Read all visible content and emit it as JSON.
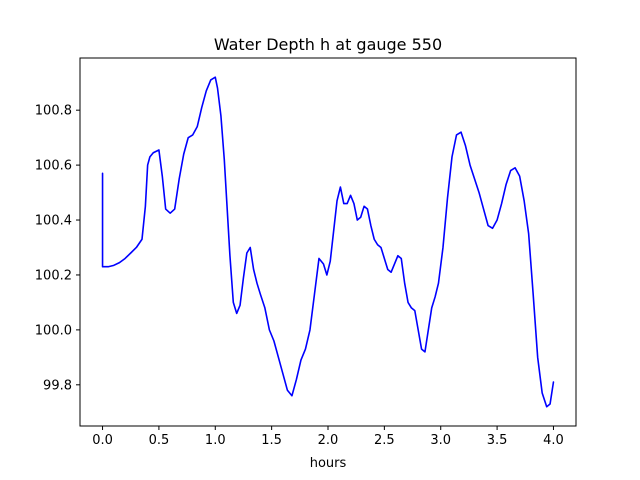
{
  "chart_data": {
    "type": "line",
    "title": "Water Depth h at gauge 550",
    "xlabel": "hours",
    "ylabel": "",
    "xlim": [
      -0.2,
      4.2
    ],
    "ylim": [
      99.65,
      100.99
    ],
    "xticks": [
      0.0,
      0.5,
      1.0,
      1.5,
      2.0,
      2.5,
      3.0,
      3.5,
      4.0
    ],
    "xtick_labels": [
      "0.0",
      "0.5",
      "1.0",
      "1.5",
      "2.0",
      "2.5",
      "3.0",
      "3.5",
      "4.0"
    ],
    "yticks": [
      99.8,
      100.0,
      100.2,
      100.4,
      100.6,
      100.8
    ],
    "ytick_labels": [
      "99.8",
      "100.0",
      "100.2",
      "100.4",
      "100.6",
      "100.8"
    ],
    "grid": false,
    "series": [
      {
        "color": "#0000ff",
        "x": [
          0.0,
          0.0,
          0.05,
          0.1,
          0.15,
          0.2,
          0.25,
          0.3,
          0.35,
          0.38,
          0.4,
          0.42,
          0.45,
          0.5,
          0.53,
          0.56,
          0.6,
          0.64,
          0.68,
          0.72,
          0.76,
          0.8,
          0.84,
          0.88,
          0.92,
          0.96,
          1.0,
          1.02,
          1.05,
          1.08,
          1.1,
          1.13,
          1.16,
          1.19,
          1.22,
          1.25,
          1.28,
          1.31,
          1.34,
          1.37,
          1.4,
          1.44,
          1.48,
          1.52,
          1.56,
          1.6,
          1.64,
          1.68,
          1.72,
          1.76,
          1.8,
          1.84,
          1.88,
          1.92,
          1.96,
          1.99,
          2.02,
          2.05,
          2.08,
          2.11,
          2.14,
          2.17,
          2.2,
          2.23,
          2.26,
          2.29,
          2.32,
          2.35,
          2.38,
          2.41,
          2.44,
          2.47,
          2.5,
          2.53,
          2.56,
          2.59,
          2.62,
          2.65,
          2.68,
          2.71,
          2.74,
          2.77,
          2.8,
          2.83,
          2.86,
          2.89,
          2.92,
          2.95,
          2.98,
          3.02,
          3.06,
          3.1,
          3.14,
          3.18,
          3.22,
          3.26,
          3.3,
          3.34,
          3.38,
          3.42,
          3.46,
          3.5,
          3.54,
          3.58,
          3.62,
          3.66,
          3.7,
          3.74,
          3.78,
          3.82,
          3.86,
          3.9,
          3.94,
          3.97,
          4.0
        ],
        "y": [
          100.57,
          100.23,
          100.23,
          100.235,
          100.245,
          100.26,
          100.28,
          100.3,
          100.33,
          100.45,
          100.6,
          100.63,
          100.645,
          100.655,
          100.56,
          100.44,
          100.425,
          100.44,
          100.55,
          100.64,
          100.7,
          100.71,
          100.74,
          100.81,
          100.87,
          100.91,
          100.92,
          100.88,
          100.78,
          100.62,
          100.48,
          100.27,
          100.1,
          100.06,
          100.09,
          100.19,
          100.28,
          100.3,
          100.22,
          100.17,
          100.13,
          100.08,
          100.0,
          99.96,
          99.9,
          99.84,
          99.78,
          99.76,
          99.82,
          99.89,
          99.93,
          100.0,
          100.13,
          100.26,
          100.24,
          100.2,
          100.25,
          100.36,
          100.47,
          100.52,
          100.46,
          100.46,
          100.49,
          100.46,
          100.4,
          100.41,
          100.45,
          100.44,
          100.38,
          100.33,
          100.31,
          100.3,
          100.26,
          100.22,
          100.21,
          100.24,
          100.27,
          100.26,
          100.17,
          100.1,
          100.08,
          100.07,
          100.0,
          99.93,
          99.92,
          100.0,
          100.08,
          100.12,
          100.17,
          100.3,
          100.48,
          100.63,
          100.71,
          100.72,
          100.67,
          100.6,
          100.55,
          100.5,
          100.44,
          100.38,
          100.37,
          100.4,
          100.46,
          100.53,
          100.58,
          100.59,
          100.56,
          100.47,
          100.35,
          100.13,
          99.9,
          99.77,
          99.72,
          99.73,
          99.81
        ]
      }
    ]
  }
}
